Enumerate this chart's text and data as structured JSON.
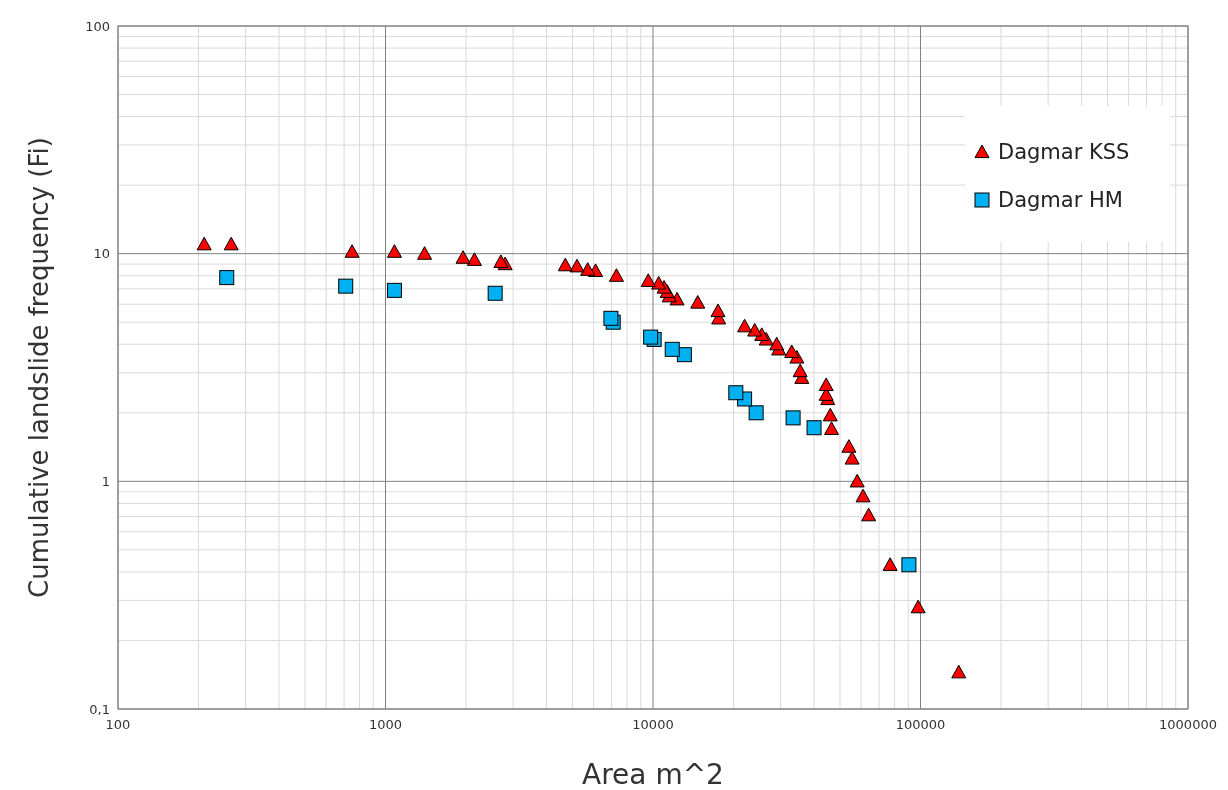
{
  "chart_data": {
    "type": "scatter",
    "xlabel": "Area m^2",
    "ylabel": "Cumulative landslide frequency (Fi)",
    "log": "xy",
    "grid": true,
    "legend": "top right",
    "xlim": [
      100,
      1000000
    ],
    "xticks": [
      100,
      1000,
      10000,
      100000,
      1000000
    ],
    "ylim": [
      0.1,
      100
    ],
    "yticks": [
      {
        "value": 0.1,
        "label": "0,1"
      },
      1,
      10,
      100
    ],
    "series": [
      {
        "name": "Dagmar KSS",
        "color": "#ff0000",
        "marker": "triangle",
        "x": [
          210,
          265,
          750,
          1080,
          1400,
          1950,
          2150,
          2700,
          2800,
          4700,
          5200,
          5700,
          6100,
          7300,
          9600,
          10500,
          11000,
          11300,
          11500,
          12300,
          14700,
          17500,
          17600,
          22000,
          24000,
          25500,
          26500,
          29000,
          29500,
          33000,
          34500,
          35500,
          36000,
          44400,
          44400,
          45000,
          46000,
          46500,
          54000,
          55500,
          58000,
          61000,
          64000,
          77000,
          98000,
          139000
        ],
        "values": [
          11,
          11,
          10.2,
          10.2,
          10,
          9.6,
          9.4,
          9.2,
          9,
          8.9,
          8.8,
          8.5,
          8.4,
          8,
          7.6,
          7.4,
          7.1,
          6.8,
          6.5,
          6.3,
          6.1,
          5.6,
          5.2,
          4.8,
          4.6,
          4.4,
          4.2,
          4,
          3.8,
          3.7,
          3.5,
          3.05,
          2.85,
          2.65,
          2.4,
          2.3,
          1.95,
          1.7,
          1.42,
          1.26,
          1,
          0.86,
          0.71,
          0.43,
          0.28,
          0.145
        ]
      },
      {
        "name": "Dagmar HM",
        "color": "#00b0f0",
        "marker": "square",
        "x": [
          255,
          710,
          1080,
          2570,
          6960,
          7100,
          9800,
          10100,
          11800,
          13100,
          20400,
          22000,
          24300,
          33400,
          40000,
          90500
        ],
        "values": [
          7.85,
          7.2,
          6.9,
          6.7,
          5.2,
          5,
          4.3,
          4.2,
          3.8,
          3.6,
          2.45,
          2.3,
          2,
          1.9,
          1.72,
          0.43
        ]
      }
    ]
  }
}
